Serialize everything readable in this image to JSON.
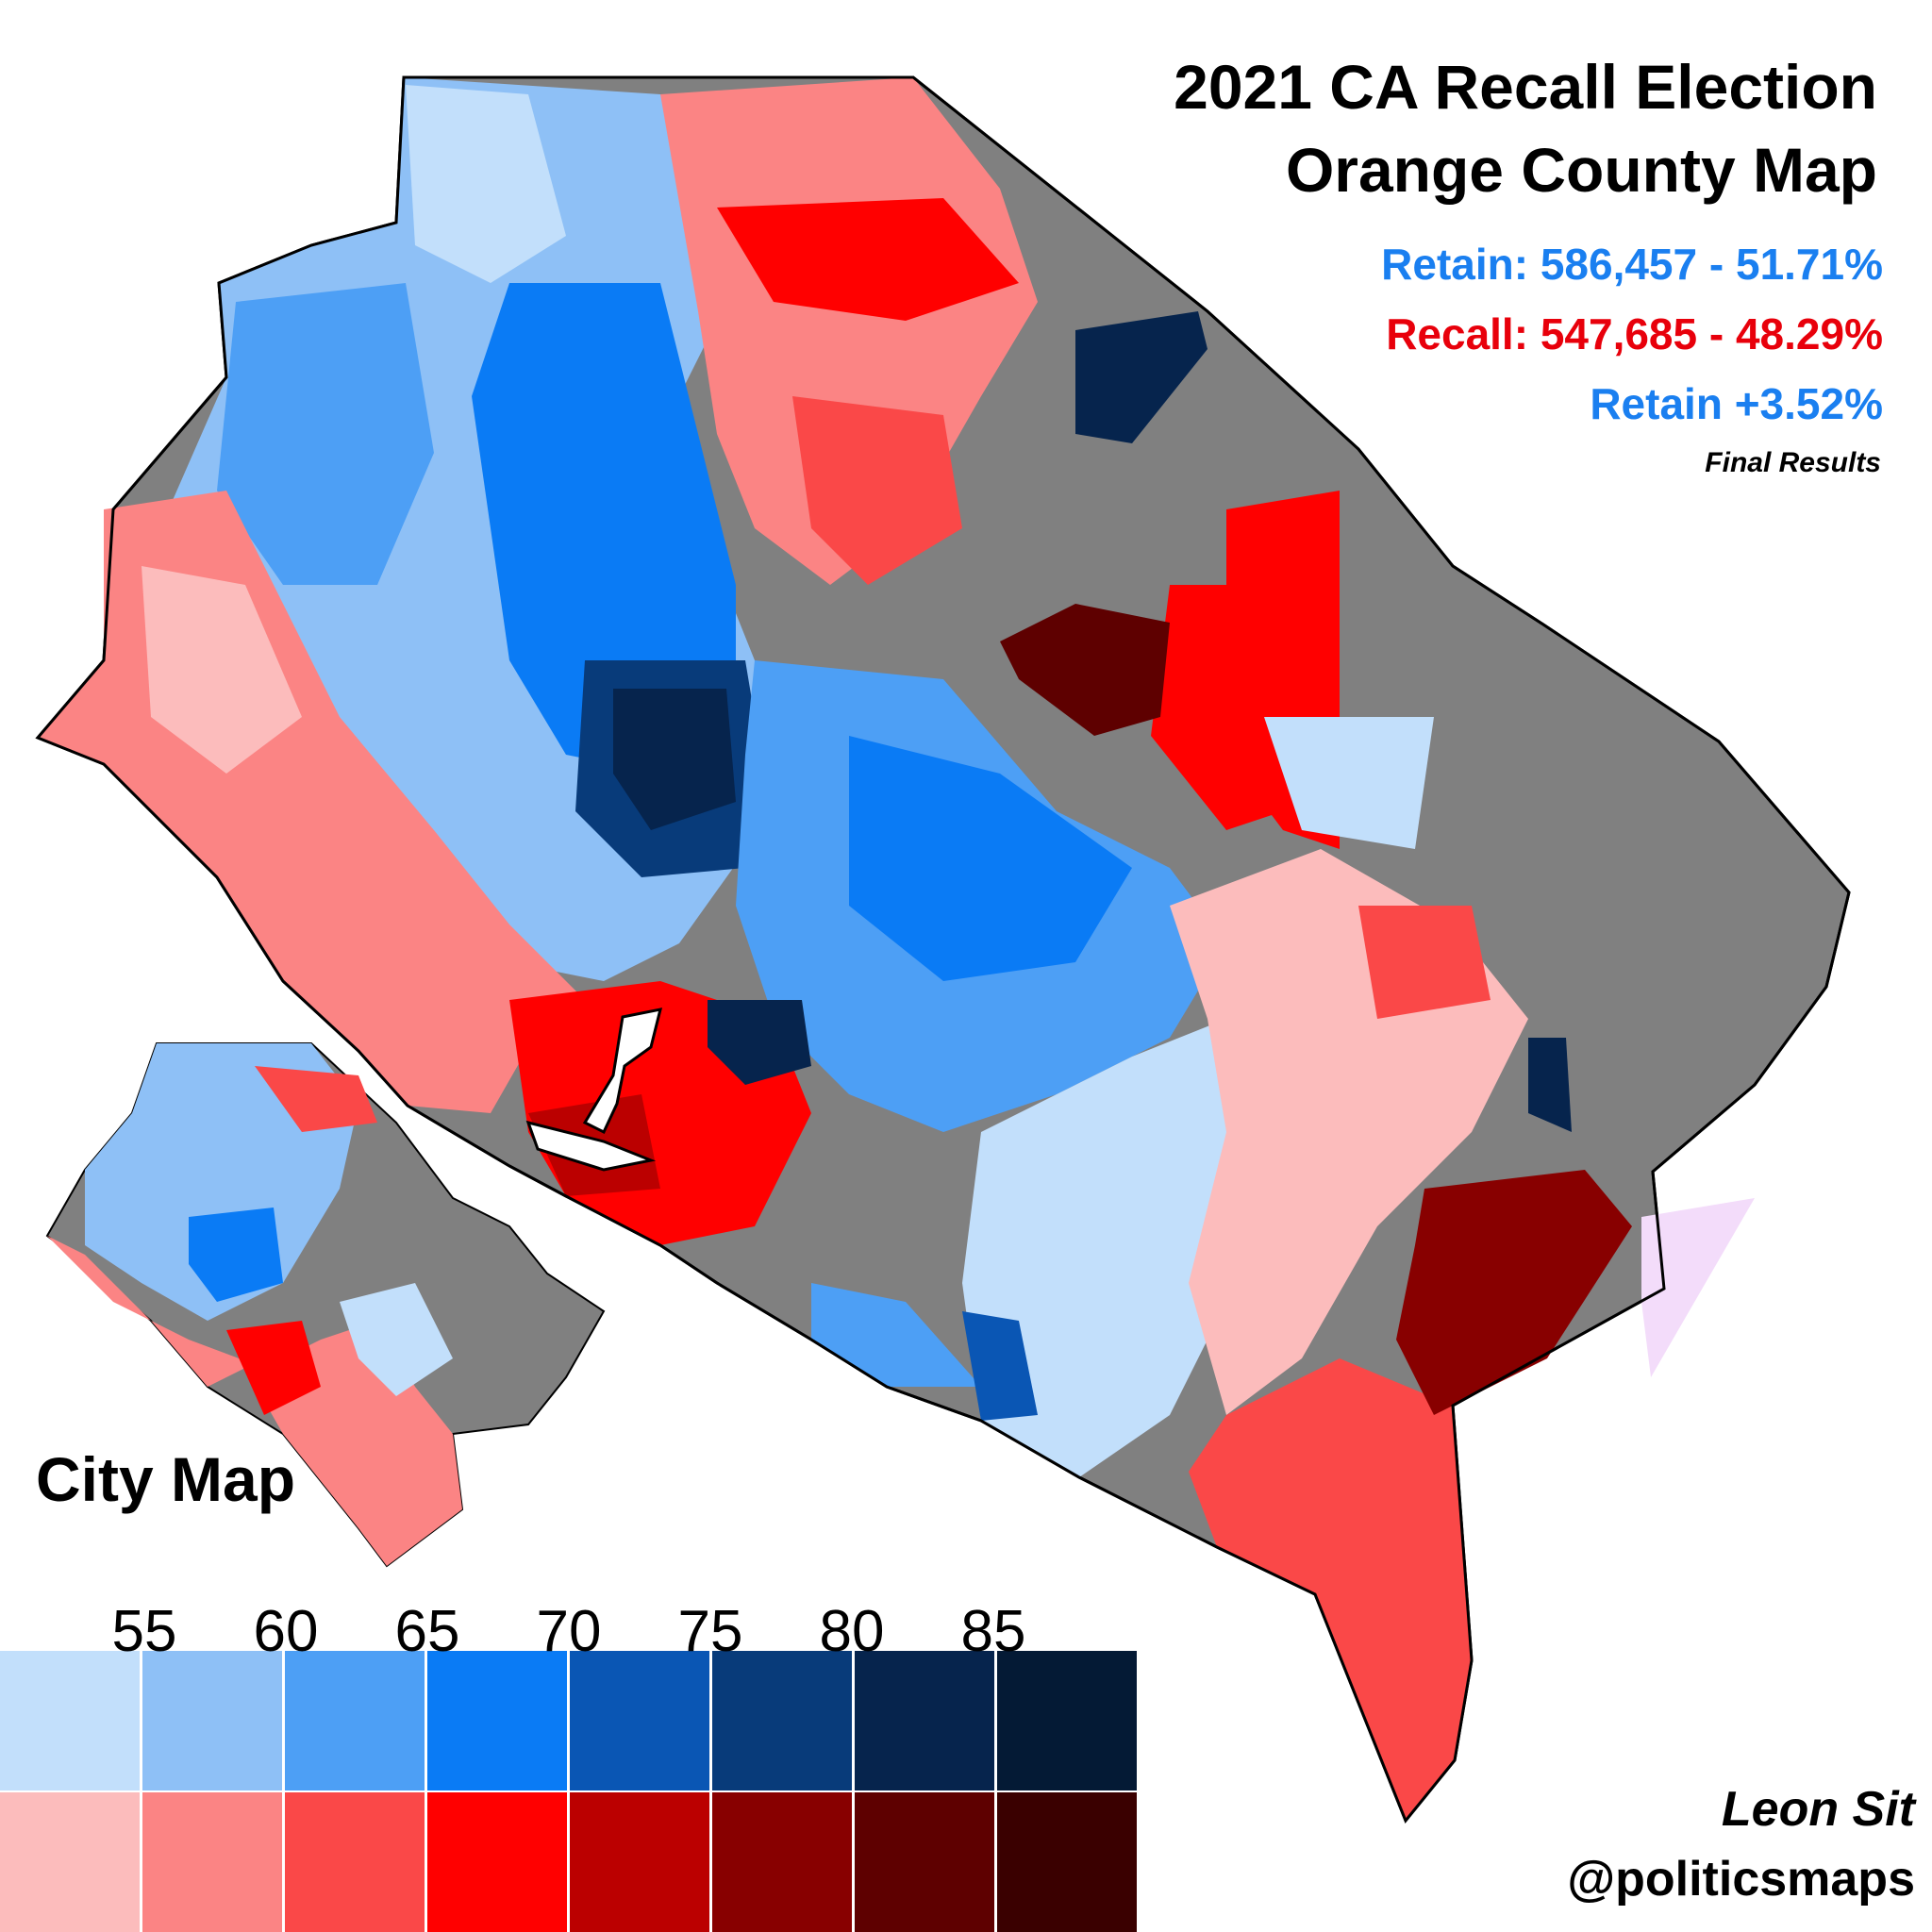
{
  "header": {
    "title_line1": "2021 CA Recall Election",
    "title_line2": "Orange County Map",
    "retain_line": "Retain: 586,457 - 51.71%",
    "recall_line": "Recall: 547,685 - 48.29%",
    "margin_line": "Retain +3.52%",
    "status_line": "Final Results"
  },
  "inset": {
    "label": "City Map"
  },
  "legend": {
    "ticks": [
      "55",
      "60",
      "65",
      "70",
      "75",
      "80",
      "85"
    ],
    "retain_colors": [
      "#c2dffb",
      "#8ec0f6",
      "#4d9ff5",
      "#0a7bf5",
      "#0a56b4",
      "#083b7a",
      "#06244d",
      "#041a35"
    ],
    "recall_colors": [
      "#fcbcbc",
      "#fb8484",
      "#fa4848",
      "#ff0000",
      "#bb0000",
      "#880000",
      "#5e0000",
      "#3a0000"
    ]
  },
  "colors": {
    "no_votes": "#808080",
    "tie": "#f3dcfa"
  },
  "credit": {
    "author": "Leon Sit",
    "handle": "@politicsmaps"
  }
}
